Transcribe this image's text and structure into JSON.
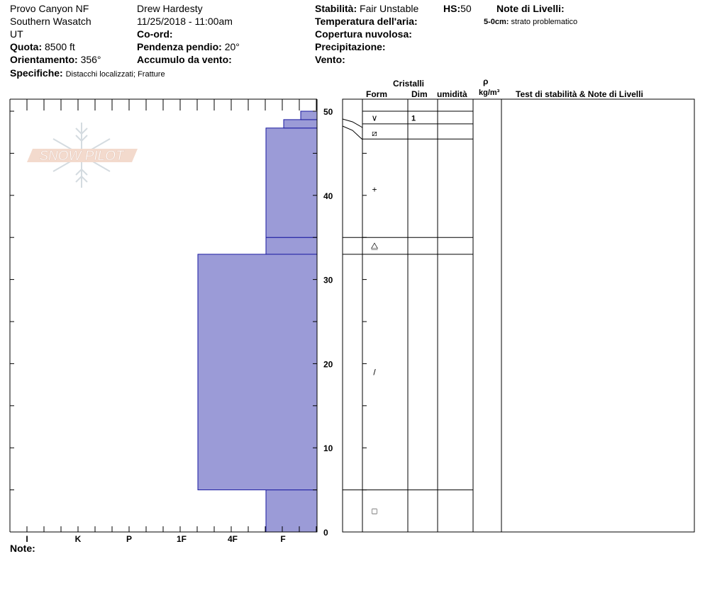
{
  "header": {
    "location": "Provo Canyon NF",
    "range": "Southern Wasatch",
    "state": "UT",
    "elevation_label": "Quota:",
    "elevation_value": "8500 ft",
    "aspect_label": "Orientamento:",
    "aspect_value": "356°",
    "specifics_label": "Specifiche:",
    "specifics_value": "Distacchi localizzati;  Fratture",
    "observer": "Drew Hardesty",
    "datetime": "11/25/2018 - 11:00am",
    "coord_label": "Co-ord:",
    "slope_label": "Pendenza pendio:",
    "slope_value": "20°",
    "wind_loading_label": "Accumulo da vento:",
    "stability_label": "Stabilità:",
    "stability_value": "Fair Unstable",
    "hs_label": "HS:",
    "hs_value": "50",
    "air_temp_label": "Temperatura dell'aria:",
    "cloud_label": "Copertura nuvolosa:",
    "precip_label": "Precipitazione:",
    "wind_label": "Vento:",
    "layer_notes_label": "Note di Livelli:",
    "layer_note_depth": "5-0cm:",
    "layer_note_text": "strato problematico"
  },
  "columns": {
    "crystals": "Cristalli",
    "form": "Form",
    "size": "Dim",
    "moisture": "umidità",
    "density_symbol": "ρ",
    "density_unit": "kg/m³",
    "stability_notes": "Test di stabilità & Note di Livelli"
  },
  "notes_label": "Note:",
  "logo_text": "SNOW PILOT",
  "chart_data": {
    "type": "snow_profile_hardness",
    "y_axis": {
      "range": [
        0,
        51
      ],
      "ticks": [
        "0",
        "10",
        "20",
        "30",
        "40",
        "50"
      ]
    },
    "x_axis": {
      "categories": [
        "I",
        "K",
        "P",
        "1F",
        "4F",
        "F"
      ],
      "reversed": true
    },
    "bar_color": "#9b9bd7",
    "hardness_layers": [
      {
        "top": 5,
        "bottom": 0,
        "hardness": "F"
      },
      {
        "top": 33,
        "bottom": 5,
        "hardness": "1F-"
      },
      {
        "top": 35,
        "bottom": 33,
        "hardness": "F"
      },
      {
        "top": 48,
        "bottom": 35,
        "hardness": "F"
      },
      {
        "top": 49,
        "bottom": 48,
        "hardness": "F-"
      },
      {
        "top": 50,
        "bottom": 49,
        "hardness": "F--"
      }
    ],
    "layer_boundaries": [
      50,
      48.5,
      46.7,
      35,
      33,
      5
    ],
    "crystal_rows": [
      {
        "height": 49.2,
        "form_symbol": "∨",
        "size": "1"
      },
      {
        "height": 47.4,
        "form_symbol": "⧄",
        "size": ""
      },
      {
        "height": 40.7,
        "form_symbol": "+",
        "size": ""
      },
      {
        "height": 34.0,
        "form_symbol": "⧋",
        "size": ""
      },
      {
        "height": 19.0,
        "form_symbol": "/",
        "size": ""
      },
      {
        "height": 2.5,
        "form_symbol": "□",
        "size": ""
      }
    ]
  }
}
